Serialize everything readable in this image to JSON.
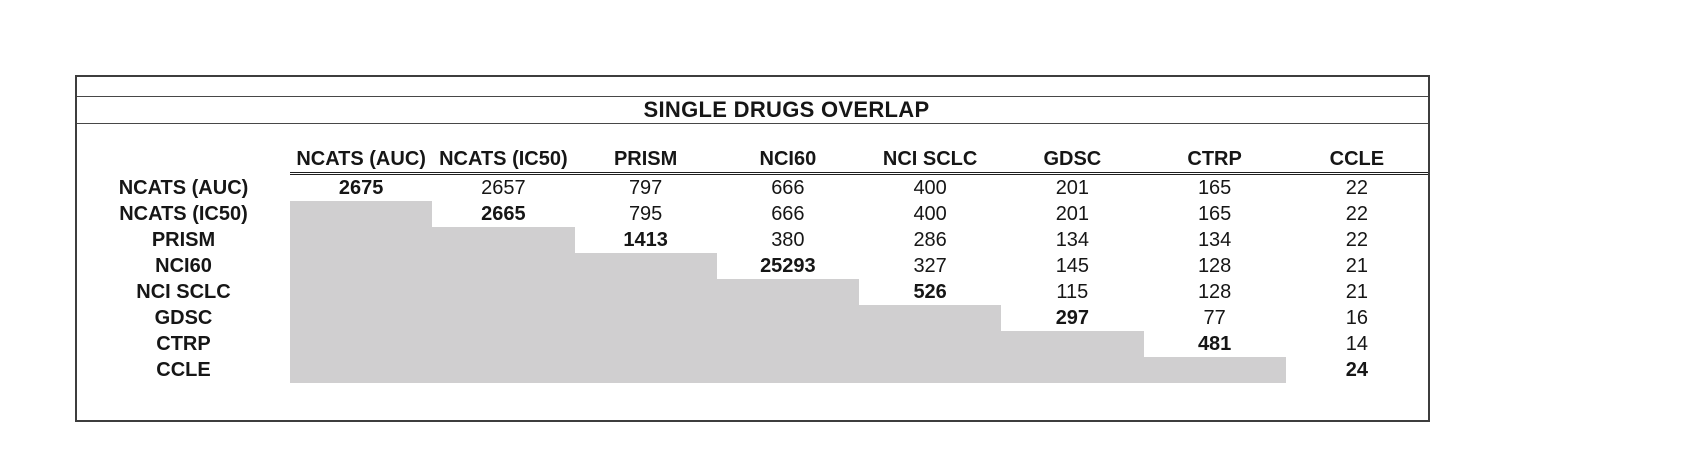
{
  "chart_data": {
    "type": "table",
    "title": "SINGLE DRUGS OVERLAP",
    "columns": [
      "NCATS (AUC)",
      "NCATS (IC50)",
      "PRISM",
      "NCI60",
      "NCI SCLC",
      "GDSC",
      "CTRP",
      "CCLE"
    ],
    "rows": [
      {
        "label": "NCATS (AUC)",
        "values": [
          2675,
          2657,
          797,
          666,
          400,
          201,
          165,
          22
        ]
      },
      {
        "label": "NCATS (IC50)",
        "values": [
          null,
          2665,
          795,
          666,
          400,
          201,
          165,
          22
        ]
      },
      {
        "label": "PRISM",
        "values": [
          null,
          null,
          1413,
          380,
          286,
          134,
          134,
          22
        ]
      },
      {
        "label": "NCI60",
        "values": [
          null,
          null,
          null,
          25293,
          327,
          145,
          128,
          21
        ]
      },
      {
        "label": "NCI SCLC",
        "values": [
          null,
          null,
          null,
          null,
          526,
          115,
          128,
          21
        ]
      },
      {
        "label": "GDSC",
        "values": [
          null,
          null,
          null,
          null,
          null,
          297,
          77,
          16
        ]
      },
      {
        "label": "CTRP",
        "values": [
          null,
          null,
          null,
          null,
          null,
          null,
          481,
          14
        ]
      },
      {
        "label": "CCLE",
        "values": [
          null,
          null,
          null,
          null,
          null,
          null,
          null,
          24
        ]
      }
    ],
    "style_semantics": {
      "diagonal_cells": "bold self-overlap counts",
      "lower_triangle": "shaded, no values"
    },
    "colors": {
      "shaded_cell": "#d0cfd0",
      "border": "#3d3d3d",
      "text": "#161616",
      "background": "#ffffff"
    }
  }
}
